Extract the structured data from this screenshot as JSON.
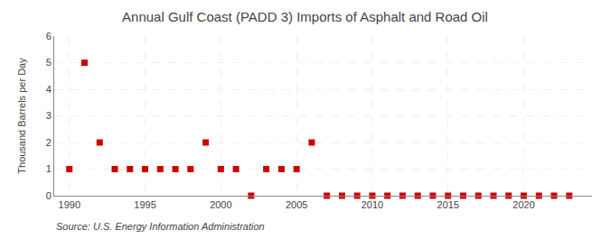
{
  "chart_data": {
    "type": "scatter",
    "title": "Annual Gulf Coast (PADD 3) Imports of Asphalt and Road Oil",
    "ylabel": "Thousand Barrels per Day",
    "annotations": [
      "Source: U.S. Energy Information Administration"
    ],
    "x": [
      1990,
      1991,
      1992,
      1993,
      1994,
      1995,
      1996,
      1997,
      1998,
      1999,
      2000,
      2001,
      2002,
      2003,
      2004,
      2005,
      2006,
      2007,
      2008,
      2009,
      2010,
      2011,
      2012,
      2013,
      2014,
      2015,
      2016,
      2017,
      2018,
      2019,
      2020,
      2021,
      2022,
      2023
    ],
    "values": [
      1,
      5,
      2,
      1,
      1,
      1,
      1,
      1,
      1,
      2,
      1,
      1,
      0,
      1,
      1,
      1,
      2,
      0,
      0,
      0,
      0,
      0,
      0,
      0,
      0,
      0,
      0,
      0,
      0,
      0,
      0,
      0,
      0,
      0
    ],
    "color": "#cc0000",
    "marker": "square",
    "xlim": [
      1989,
      2024.5
    ],
    "ylim": [
      0,
      6
    ],
    "xticks": [
      1990,
      1995,
      2000,
      2005,
      2010,
      2015,
      2020
    ],
    "yticks": [
      0,
      1,
      2,
      3,
      4,
      5,
      6
    ],
    "grid": true
  }
}
